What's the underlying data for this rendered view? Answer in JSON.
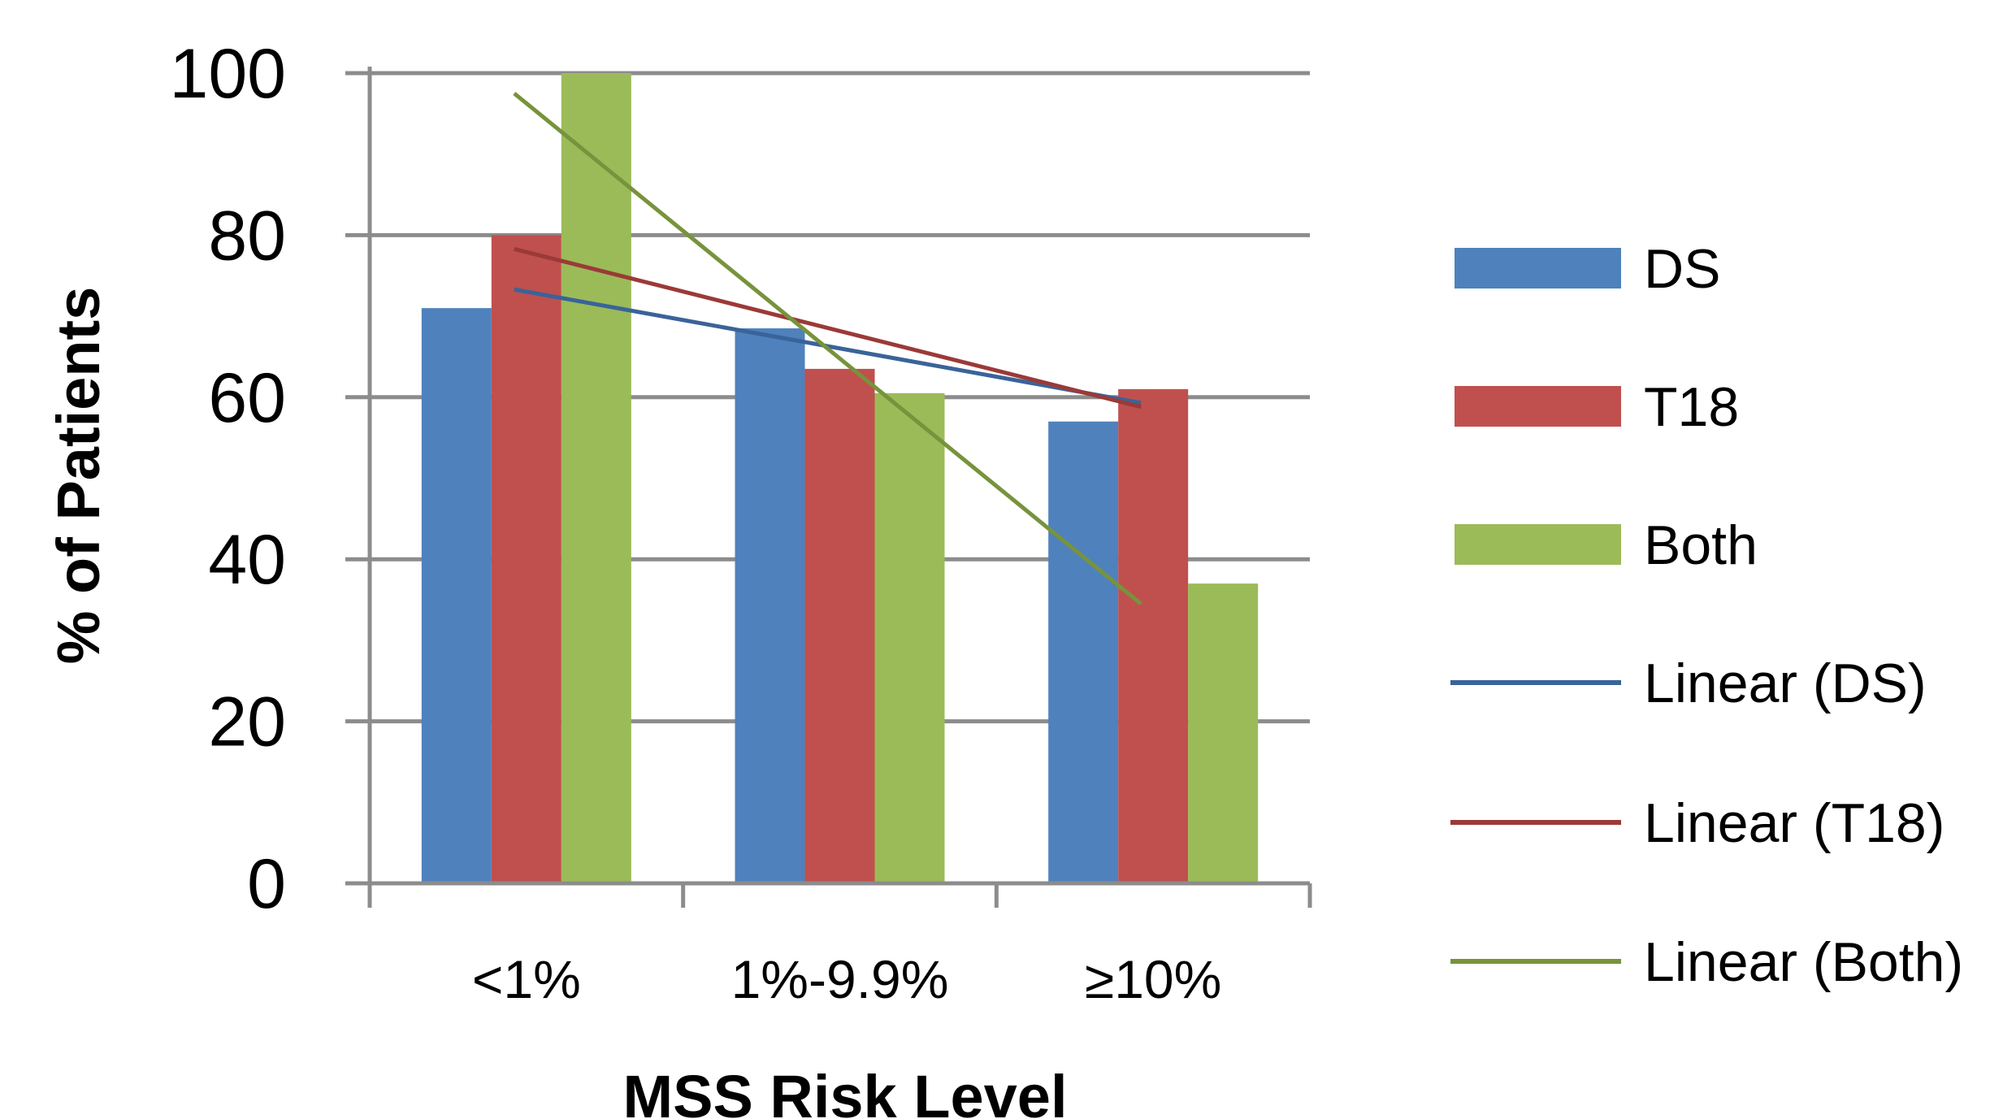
{
  "chart_data": {
    "type": "bar",
    "title": "",
    "xlabel": "MSS Risk Level",
    "ylabel": "% of Patients",
    "categories": [
      "<1%",
      "1%-9.9%",
      "≥10%"
    ],
    "yticks": [
      0,
      20,
      40,
      60,
      80,
      100
    ],
    "ylim": [
      0,
      100
    ],
    "grid": true,
    "legend_position": "right",
    "series": [
      {
        "name": "DS",
        "color": "#4F81BD",
        "values": [
          71,
          68.5,
          57
        ]
      },
      {
        "name": "T18",
        "color": "#C0504D",
        "values": [
          80,
          63.5,
          61
        ]
      },
      {
        "name": "Both",
        "color": "#9BBB59",
        "values": [
          100,
          60.5,
          37
        ]
      }
    ],
    "trendlines": [
      {
        "name": "Linear (DS)",
        "color": "#3A6399",
        "start": 73.3,
        "end": 59.3
      },
      {
        "name": "Linear (T18)",
        "color": "#9B3A37",
        "start": 78.3,
        "end": 58.8
      },
      {
        "name": "Linear (Both)",
        "color": "#77933C",
        "start": 97.5,
        "end": 34.5
      }
    ]
  }
}
